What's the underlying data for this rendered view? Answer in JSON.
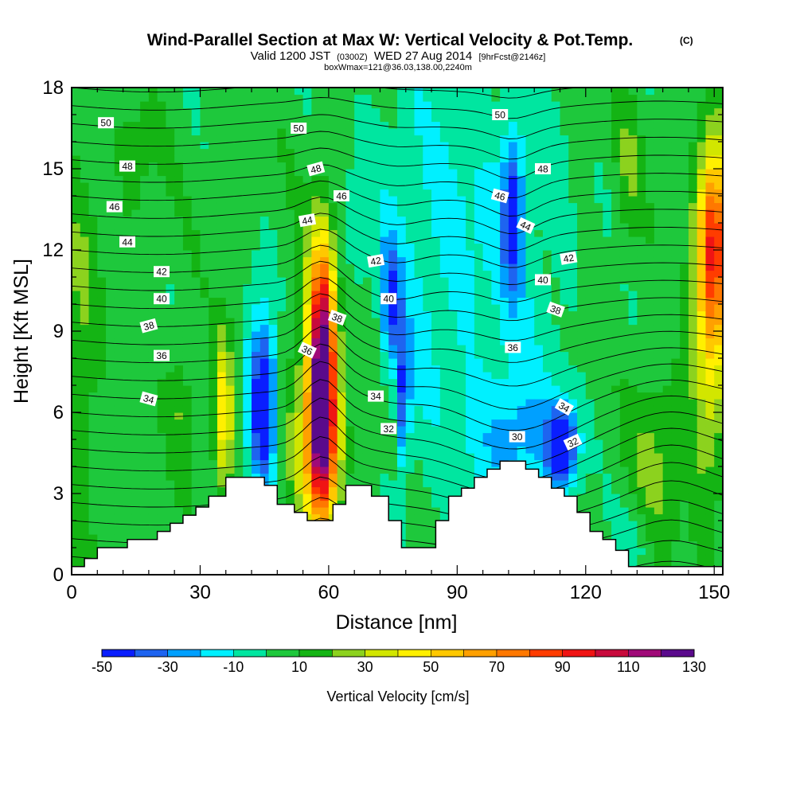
{
  "title": {
    "main": "Wind-Parallel Section at Max W: Vertical Velocity & Pot.Temp.",
    "copyright": "(C)",
    "valid_line": "Valid 1200 JST",
    "valid_utc": "(0300Z)",
    "valid_date": "WED 27 Aug 2014",
    "forecast": "[9hrFcst@2146z]",
    "box": "boxWmax=121@36.03,138.00,2240m"
  },
  "chart_data": {
    "type": "heatmap",
    "xlabel": "Distance [nm]",
    "ylabel": "Height [Kft MSL]",
    "xlim": [
      0,
      152
    ],
    "ylim": [
      0,
      18
    ],
    "x_ticks": [
      0,
      30,
      60,
      90,
      120,
      150
    ],
    "y_ticks": [
      0,
      3,
      6,
      9,
      12,
      15,
      18
    ],
    "colorbar": {
      "label": "Vertical Velocity [cm/s]",
      "tick_values": [
        -50,
        -30,
        -10,
        10,
        30,
        50,
        70,
        90,
        110,
        130
      ],
      "bins": [
        {
          "from": -50,
          "to": -40,
          "color": "#0a1eff"
        },
        {
          "from": -40,
          "to": -30,
          "color": "#1e64f0"
        },
        {
          "from": -30,
          "to": -20,
          "color": "#00a0ff"
        },
        {
          "from": -20,
          "to": -10,
          "color": "#00f0ff"
        },
        {
          "from": -10,
          "to": 0,
          "color": "#00e6a0"
        },
        {
          "from": 0,
          "to": 10,
          "color": "#1ec83c"
        },
        {
          "from": 10,
          "to": 20,
          "color": "#14b414"
        },
        {
          "from": 20,
          "to": 30,
          "color": "#8cd21e"
        },
        {
          "from": 30,
          "to": 40,
          "color": "#d2e600"
        },
        {
          "from": 40,
          "to": 50,
          "color": "#fff000"
        },
        {
          "from": 50,
          "to": 60,
          "color": "#ffc800"
        },
        {
          "from": 60,
          "to": 70,
          "color": "#ffa000"
        },
        {
          "from": 70,
          "to": 80,
          "color": "#ff7800"
        },
        {
          "from": 80,
          "to": 90,
          "color": "#ff3c00"
        },
        {
          "from": 90,
          "to": 100,
          "color": "#f01414"
        },
        {
          "from": 100,
          "to": 110,
          "color": "#c80a3c"
        },
        {
          "from": 110,
          "to": 120,
          "color": "#a00a78"
        },
        {
          "from": 120,
          "to": 130,
          "color": "#5a0a8c"
        }
      ]
    },
    "background_w": 5,
    "w_features": [
      {
        "x": 58.5,
        "y": 7.5,
        "sx": 2.2,
        "sy": 3.3,
        "amp": 125
      },
      {
        "x": 58.5,
        "y": 4.5,
        "sx": 3.2,
        "sy": 1.8,
        "amp": 40
      },
      {
        "x": 55.5,
        "y": 6.0,
        "sx": 4.5,
        "sy": 3.5,
        "amp": 18
      },
      {
        "x": 35.5,
        "y": 6.0,
        "sx": 1.6,
        "sy": 2.0,
        "amp": 45
      },
      {
        "x": 25.5,
        "y": 6.5,
        "sx": 2.0,
        "sy": 1.5,
        "amp": 15
      },
      {
        "x": 45.0,
        "y": 6.0,
        "sx": 2.0,
        "sy": 2.0,
        "amp": -55
      },
      {
        "x": 43.5,
        "y": 7.5,
        "sx": 3.0,
        "sy": 2.5,
        "amp": -20
      },
      {
        "x": 74.5,
        "y": 10.0,
        "sx": 1.6,
        "sy": 1.6,
        "amp": -35
      },
      {
        "x": 77.5,
        "y": 6.5,
        "sx": 1.0,
        "sy": 1.8,
        "amp": -40
      },
      {
        "x": 78.0,
        "y": 12.0,
        "sx": 10.0,
        "sy": 5.5,
        "amp": -14
      },
      {
        "x": 103.0,
        "y": 13.5,
        "sx": 1.8,
        "sy": 2.0,
        "amp": -45
      },
      {
        "x": 114.5,
        "y": 4.8,
        "sx": 2.5,
        "sy": 1.0,
        "amp": -60
      },
      {
        "x": 104.0,
        "y": 5.0,
        "sx": 6.0,
        "sy": 1.5,
        "amp": -22
      },
      {
        "x": 100.0,
        "y": 10.0,
        "sx": 12.0,
        "sy": 7.0,
        "amp": -14
      },
      {
        "x": 150.0,
        "y": 12.5,
        "sx": 2.5,
        "sy": 2.5,
        "amp": 75
      },
      {
        "x": 148.5,
        "y": 8.0,
        "sx": 3.0,
        "sy": 4.0,
        "amp": 30
      },
      {
        "x": 2.0,
        "y": 9.0,
        "sx": 3.0,
        "sy": 5.0,
        "amp": 14
      },
      {
        "x": 15.0,
        "y": 15.0,
        "sx": 4.0,
        "sy": 2.0,
        "amp": 8
      },
      {
        "x": 70.0,
        "y": 7.0,
        "sx": 2.0,
        "sy": 2.5,
        "amp": 12
      },
      {
        "x": 130.0,
        "y": 15.0,
        "sx": 2.0,
        "sy": 2.0,
        "amp": 14
      },
      {
        "x": 136.0,
        "y": 4.0,
        "sx": 4.0,
        "sy": 2.5,
        "amp": 18
      },
      {
        "x": 132.0,
        "y": 1.5,
        "sx": 3.0,
        "sy": 1.0,
        "amp": -14
      }
    ],
    "terrain_kft": [
      {
        "x": 0,
        "h": 0.3
      },
      {
        "x": 3,
        "h": 0.6
      },
      {
        "x": 6,
        "h": 1.0
      },
      {
        "x": 13,
        "h": 1.3
      },
      {
        "x": 20,
        "h": 1.6
      },
      {
        "x": 23,
        "h": 1.9
      },
      {
        "x": 26,
        "h": 2.2
      },
      {
        "x": 29,
        "h": 2.5
      },
      {
        "x": 32,
        "h": 2.9
      },
      {
        "x": 36,
        "h": 3.6
      },
      {
        "x": 45,
        "h": 3.3
      },
      {
        "x": 48,
        "h": 2.6
      },
      {
        "x": 52,
        "h": 2.3
      },
      {
        "x": 55,
        "h": 2.0
      },
      {
        "x": 61,
        "h": 2.6
      },
      {
        "x": 64,
        "h": 3.3
      },
      {
        "x": 70,
        "h": 2.9
      },
      {
        "x": 74,
        "h": 2.0
      },
      {
        "x": 77,
        "h": 1.0
      },
      {
        "x": 85,
        "h": 2.0
      },
      {
        "x": 88,
        "h": 2.9
      },
      {
        "x": 91,
        "h": 3.2
      },
      {
        "x": 94,
        "h": 3.6
      },
      {
        "x": 97,
        "h": 3.9
      },
      {
        "x": 100,
        "h": 4.2
      },
      {
        "x": 106,
        "h": 3.9
      },
      {
        "x": 109,
        "h": 3.6
      },
      {
        "x": 112,
        "h": 3.2
      },
      {
        "x": 115,
        "h": 2.9
      },
      {
        "x": 118,
        "h": 2.3
      },
      {
        "x": 121,
        "h": 1.6
      },
      {
        "x": 124,
        "h": 1.3
      },
      {
        "x": 127,
        "h": 0.9
      },
      {
        "x": 130,
        "h": 0.3
      },
      {
        "x": 152,
        "h": 0.3
      }
    ],
    "theta_contours": {
      "levels": [
        24,
        25,
        26,
        27,
        28,
        29,
        30,
        31,
        32,
        33,
        34,
        35,
        36,
        37,
        38,
        39,
        40,
        41,
        42,
        43,
        44,
        45,
        46,
        47,
        48,
        49,
        50,
        51,
        52
      ],
      "features": [
        {
          "x": 58.5,
          "y": 7.5,
          "sx": 4.0,
          "sy": 5.0,
          "amp": -1.6
        },
        {
          "x": 104.0,
          "y": 4.8,
          "sx": 12.0,
          "sy": 2.5,
          "amp": 1.8
        },
        {
          "x": 75.0,
          "y": 10.5,
          "sx": 6.0,
          "sy": 4.0,
          "amp": 0.8
        },
        {
          "x": 103.0,
          "y": 13.5,
          "sx": 5.0,
          "sy": 3.0,
          "amp": 0.9
        },
        {
          "x": 140.0,
          "y": 4.0,
          "sx": 8.0,
          "sy": 3.0,
          "amp": -1.0
        }
      ],
      "labels": [
        {
          "text": "50",
          "x": 8,
          "y": 16.7,
          "angle": 0
        },
        {
          "text": "48",
          "x": 13,
          "y": 15.1,
          "angle": 0
        },
        {
          "text": "46",
          "x": 10,
          "y": 13.6,
          "angle": 0
        },
        {
          "text": "44",
          "x": 13,
          "y": 12.3,
          "angle": 0
        },
        {
          "text": "42",
          "x": 21,
          "y": 11.2,
          "angle": 0
        },
        {
          "text": "40",
          "x": 21,
          "y": 10.2,
          "angle": 0
        },
        {
          "text": "38",
          "x": 18,
          "y": 9.2,
          "angle": -15
        },
        {
          "text": "36",
          "x": 21,
          "y": 8.1,
          "angle": 0
        },
        {
          "text": "34",
          "x": 18,
          "y": 6.5,
          "angle": 15
        },
        {
          "text": "50",
          "x": 53,
          "y": 16.5,
          "angle": 0
        },
        {
          "text": "48",
          "x": 57,
          "y": 15.0,
          "angle": -15
        },
        {
          "text": "46",
          "x": 63,
          "y": 14.0,
          "angle": 0
        },
        {
          "text": "44",
          "x": 55,
          "y": 13.1,
          "angle": -10
        },
        {
          "text": "38",
          "x": 62,
          "y": 9.5,
          "angle": 20
        },
        {
          "text": "36",
          "x": 55,
          "y": 8.3,
          "angle": 25
        },
        {
          "text": "42",
          "x": 71,
          "y": 11.6,
          "angle": -10
        },
        {
          "text": "40",
          "x": 74,
          "y": 10.2,
          "angle": 0
        },
        {
          "text": "34",
          "x": 71,
          "y": 6.6,
          "angle": 0
        },
        {
          "text": "32",
          "x": 74,
          "y": 5.4,
          "angle": 0
        },
        {
          "text": "50",
          "x": 100,
          "y": 17.0,
          "angle": 0
        },
        {
          "text": "48",
          "x": 110,
          "y": 15.0,
          "angle": 0
        },
        {
          "text": "46",
          "x": 100,
          "y": 14.0,
          "angle": 15
        },
        {
          "text": "44",
          "x": 106,
          "y": 12.9,
          "angle": 25
        },
        {
          "text": "42",
          "x": 116,
          "y": 11.7,
          "angle": -10
        },
        {
          "text": "40",
          "x": 110,
          "y": 10.9,
          "angle": 0
        },
        {
          "text": "38",
          "x": 113,
          "y": 9.8,
          "angle": 20
        },
        {
          "text": "36",
          "x": 103,
          "y": 8.4,
          "angle": 0
        },
        {
          "text": "34",
          "x": 115,
          "y": 6.2,
          "angle": 30
        },
        {
          "text": "32",
          "x": 117,
          "y": 4.9,
          "angle": -25
        },
        {
          "text": "30",
          "x": 104,
          "y": 5.1,
          "angle": 0
        }
      ]
    }
  }
}
